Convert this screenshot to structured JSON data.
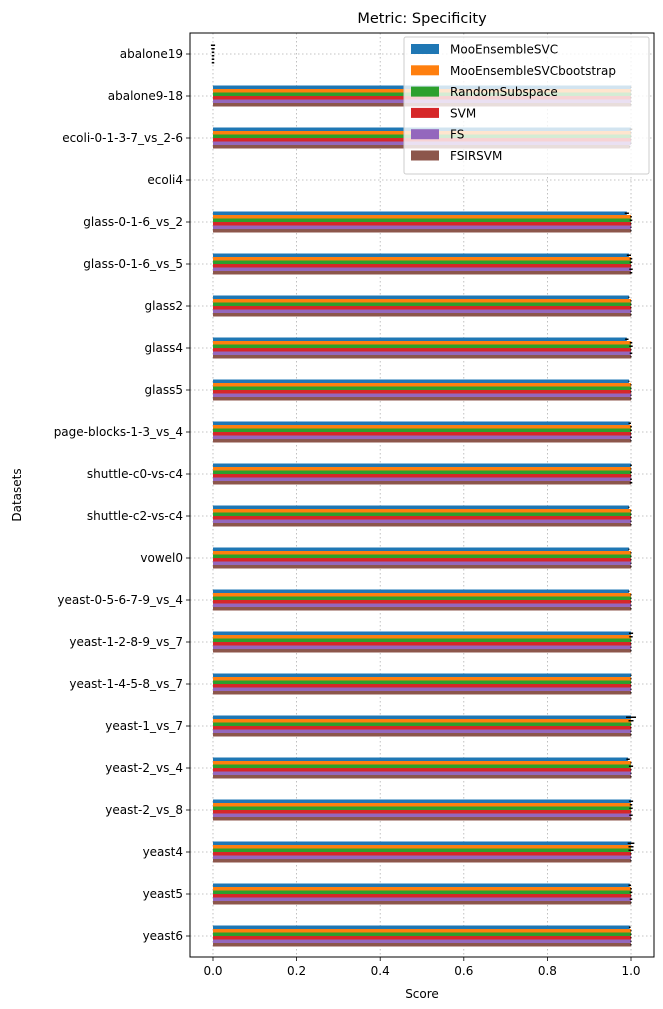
{
  "chart_data": {
    "type": "bar",
    "orientation": "horizontal",
    "title": "Metric: Specificity",
    "xlabel": "Score",
    "ylabel": "Datasets",
    "xlim": [
      -0.055,
      1.055
    ],
    "xticks": [
      0.0,
      0.2,
      0.4,
      0.6,
      0.8,
      1.0
    ],
    "xtick_labels": [
      "0.0",
      "0.2",
      "0.4",
      "0.6",
      "0.8",
      "1.0"
    ],
    "grid": true,
    "legend_position": "upper right",
    "categories": [
      "abalone19",
      "abalone9-18",
      "ecoli-0-1-3-7_vs_2-6",
      "ecoli4",
      "glass-0-1-6_vs_2",
      "glass-0-1-6_vs_5",
      "glass2",
      "glass4",
      "glass5",
      "page-blocks-1-3_vs_4",
      "shuttle-c0-vs-c4",
      "shuttle-c2-vs-c4",
      "vowel0",
      "yeast-0-5-6-7-9_vs_4",
      "yeast-1-2-8-9_vs_7",
      "yeast-1-4-5-8_vs_7",
      "yeast-1_vs_7",
      "yeast-2_vs_4",
      "yeast-2_vs_8",
      "yeast4",
      "yeast5",
      "yeast6"
    ],
    "series": [
      {
        "name": "MooEnsembleSVC",
        "color": "#1f77b4",
        "values": [
          0.0,
          1.0,
          1.0,
          null,
          0.99,
          0.995,
          0.995,
          0.99,
          0.995,
          0.997,
          1.0,
          0.995,
          0.995,
          0.995,
          1.0,
          1.0,
          1.0,
          0.993,
          1.0,
          1.0,
          0.997,
          0.997
        ],
        "errors": [
          0.005,
          0.0,
          0.003,
          null,
          0.005,
          0.005,
          0.0,
          0.004,
          0.0,
          0.003,
          0.002,
          0.0,
          0.0,
          0.0,
          0.005,
          0.0,
          0.012,
          0.004,
          0.005,
          0.008,
          0.003,
          0.002
        ]
      },
      {
        "name": "MooEnsembleSVCbootstrap",
        "color": "#ff7f0e",
        "values": [
          0.0,
          1.0,
          1.0,
          null,
          1.0,
          1.0,
          1.0,
          1.0,
          1.0,
          1.0,
          1.0,
          1.0,
          1.0,
          1.0,
          1.0,
          1.0,
          1.0,
          1.0,
          1.0,
          1.0,
          1.0,
          1.0
        ],
        "errors": [
          0.004,
          0.0,
          0.0,
          null,
          0.002,
          0.003,
          0.0,
          0.003,
          0.0,
          0.002,
          0.001,
          0.0,
          0.0,
          0.0,
          0.004,
          0.0,
          0.006,
          0.0,
          0.003,
          0.006,
          0.002,
          0.0
        ]
      },
      {
        "name": "RandomSubspace",
        "color": "#2ca02c",
        "values": [
          0.0,
          1.0,
          1.0,
          null,
          1.0,
          1.0,
          1.0,
          1.0,
          1.0,
          1.0,
          1.0,
          1.0,
          1.0,
          1.0,
          1.0,
          1.0,
          1.0,
          1.0,
          1.0,
          1.0,
          1.0,
          1.0
        ],
        "errors": [
          0.003,
          0.0,
          0.0,
          null,
          0.003,
          0.003,
          0.0,
          0.004,
          0.0,
          0.002,
          0.002,
          0.0,
          0.0,
          0.0,
          0.0,
          0.0,
          0.0,
          0.005,
          0.004,
          0.006,
          0.003,
          0.0
        ]
      },
      {
        "name": "SVM",
        "color": "#d62728",
        "values": [
          0.0,
          1.0,
          1.0,
          null,
          1.0,
          1.0,
          1.0,
          1.0,
          1.0,
          1.0,
          1.0,
          1.0,
          1.0,
          1.0,
          1.0,
          1.0,
          1.0,
          1.0,
          1.0,
          1.0,
          1.0,
          1.0
        ],
        "errors": [
          0.003,
          0.0,
          0.0,
          null,
          0.0,
          0.0,
          0.0,
          0.0,
          0.0,
          0.0,
          0.0,
          0.0,
          0.0,
          0.0,
          0.0,
          0.0,
          0.0,
          0.0,
          0.0,
          0.0,
          0.0,
          0.0
        ]
      },
      {
        "name": "FS",
        "color": "#9467bd",
        "values": [
          0.0,
          1.0,
          1.0,
          null,
          1.0,
          1.0,
          1.0,
          1.0,
          1.0,
          1.0,
          1.0,
          1.0,
          1.0,
          1.0,
          1.0,
          1.0,
          1.0,
          1.0,
          1.0,
          1.0,
          1.0,
          1.0
        ],
        "errors": [
          0.003,
          0.0,
          0.0,
          null,
          0.0,
          0.004,
          0.0,
          0.003,
          0.0,
          0.002,
          0.002,
          0.0,
          0.0,
          0.0,
          0.0,
          0.0,
          0.0,
          0.0,
          0.004,
          0.0,
          0.003,
          0.0
        ]
      },
      {
        "name": "FSIRSVM",
        "color": "#8c564b",
        "values": [
          0.0,
          1.0,
          0.997,
          null,
          1.0,
          1.0,
          1.0,
          1.0,
          1.0,
          1.0,
          1.0,
          1.0,
          1.0,
          1.0,
          1.0,
          1.0,
          1.0,
          1.0,
          1.0,
          1.0,
          1.0,
          1.0
        ],
        "errors": [
          0.003,
          0.0,
          0.0,
          null,
          0.0,
          0.003,
          0.0,
          0.0,
          0.0,
          0.0,
          0.003,
          0.0,
          0.0,
          0.0,
          0.0,
          0.0,
          0.0,
          0.0,
          0.0,
          0.0,
          0.0,
          0.0
        ]
      }
    ]
  }
}
